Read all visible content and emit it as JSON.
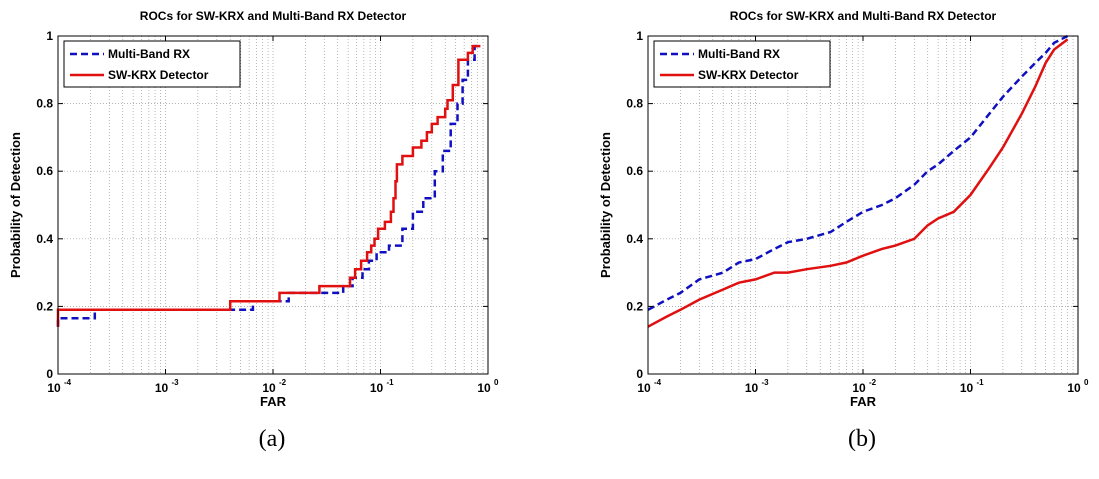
{
  "chart_data": [
    {
      "type": "line",
      "title": "ROCs for SW-KRX and Multi-Band RX Detector",
      "xlabel": "FAR",
      "ylabel": "Probability of Detection",
      "xscale": "log",
      "xlim": [
        0.0001,
        1
      ],
      "ylim": [
        0,
        1
      ],
      "xticks": [
        {
          "base": "10",
          "exp": "-4"
        },
        {
          "base": "10",
          "exp": "-3"
        },
        {
          "base": "10",
          "exp": "-2"
        },
        {
          "base": "10",
          "exp": "-1"
        },
        {
          "base": "10",
          "exp": "0"
        }
      ],
      "yticks": [
        "0",
        "0.2",
        "0.4",
        "0.6",
        "0.8",
        "1"
      ],
      "grid": true,
      "legend": "top-left",
      "caption": "(a)",
      "series": [
        {
          "name": "Multi-Band RX",
          "color": "#1010c0",
          "style": "dashed",
          "points": [
            [
              0.0001,
              0.14
            ],
            [
              0.0001,
              0.165
            ],
            [
              0.00022,
              0.165
            ],
            [
              0.00022,
              0.19
            ],
            [
              0.0065,
              0.19
            ],
            [
              0.0065,
              0.215
            ],
            [
              0.014,
              0.215
            ],
            [
              0.014,
              0.24
            ],
            [
              0.045,
              0.24
            ],
            [
              0.045,
              0.26
            ],
            [
              0.055,
              0.26
            ],
            [
              0.055,
              0.285
            ],
            [
              0.068,
              0.285
            ],
            [
              0.068,
              0.31
            ],
            [
              0.078,
              0.31
            ],
            [
              0.078,
              0.335
            ],
            [
              0.092,
              0.335
            ],
            [
              0.092,
              0.36
            ],
            [
              0.12,
              0.36
            ],
            [
              0.12,
              0.38
            ],
            [
              0.16,
              0.38
            ],
            [
              0.16,
              0.43
            ],
            [
              0.2,
              0.43
            ],
            [
              0.2,
              0.48
            ],
            [
              0.25,
              0.48
            ],
            [
              0.25,
              0.52
            ],
            [
              0.32,
              0.52
            ],
            [
              0.32,
              0.6
            ],
            [
              0.38,
              0.6
            ],
            [
              0.38,
              0.66
            ],
            [
              0.45,
              0.66
            ],
            [
              0.45,
              0.74
            ],
            [
              0.52,
              0.74
            ],
            [
              0.52,
              0.8
            ],
            [
              0.58,
              0.8
            ],
            [
              0.58,
              0.87
            ],
            [
              0.65,
              0.87
            ],
            [
              0.65,
              0.93
            ],
            [
              0.75,
              0.93
            ],
            [
              0.75,
              0.97
            ],
            [
              0.85,
              0.97
            ]
          ]
        },
        {
          "name": "SW-KRX Detector",
          "color": "#e01010",
          "style": "solid",
          "points": [
            [
              0.0001,
              0.14
            ],
            [
              0.0001,
              0.19
            ],
            [
              0.004,
              0.19
            ],
            [
              0.004,
              0.215
            ],
            [
              0.0115,
              0.215
            ],
            [
              0.0115,
              0.24
            ],
            [
              0.027,
              0.24
            ],
            [
              0.027,
              0.26
            ],
            [
              0.052,
              0.26
            ],
            [
              0.052,
              0.285
            ],
            [
              0.058,
              0.285
            ],
            [
              0.058,
              0.31
            ],
            [
              0.066,
              0.31
            ],
            [
              0.066,
              0.335
            ],
            [
              0.075,
              0.335
            ],
            [
              0.075,
              0.36
            ],
            [
              0.082,
              0.36
            ],
            [
              0.082,
              0.38
            ],
            [
              0.088,
              0.38
            ],
            [
              0.088,
              0.4
            ],
            [
              0.095,
              0.4
            ],
            [
              0.095,
              0.43
            ],
            [
              0.11,
              0.43
            ],
            [
              0.11,
              0.45
            ],
            [
              0.125,
              0.45
            ],
            [
              0.125,
              0.48
            ],
            [
              0.132,
              0.48
            ],
            [
              0.132,
              0.52
            ],
            [
              0.138,
              0.52
            ],
            [
              0.138,
              0.57
            ],
            [
              0.142,
              0.57
            ],
            [
              0.142,
              0.62
            ],
            [
              0.16,
              0.62
            ],
            [
              0.16,
              0.645
            ],
            [
              0.2,
              0.645
            ],
            [
              0.2,
              0.67
            ],
            [
              0.24,
              0.67
            ],
            [
              0.24,
              0.69
            ],
            [
              0.27,
              0.69
            ],
            [
              0.27,
              0.715
            ],
            [
              0.3,
              0.715
            ],
            [
              0.3,
              0.74
            ],
            [
              0.34,
              0.74
            ],
            [
              0.34,
              0.76
            ],
            [
              0.4,
              0.76
            ],
            [
              0.4,
              0.785
            ],
            [
              0.42,
              0.785
            ],
            [
              0.42,
              0.81
            ],
            [
              0.47,
              0.81
            ],
            [
              0.47,
              0.855
            ],
            [
              0.53,
              0.855
            ],
            [
              0.53,
              0.93
            ],
            [
              0.65,
              0.93
            ],
            [
              0.65,
              0.95
            ],
            [
              0.72,
              0.95
            ],
            [
              0.72,
              0.97
            ],
            [
              0.85,
              0.97
            ]
          ]
        }
      ]
    },
    {
      "type": "line",
      "title": "ROCs for SW-KRX and Multi-Band RX Detector",
      "xlabel": "FAR",
      "ylabel": "Probability of Detection",
      "xscale": "log",
      "xlim": [
        0.0001,
        1
      ],
      "ylim": [
        0,
        1
      ],
      "xticks": [
        {
          "base": "10",
          "exp": "-4"
        },
        {
          "base": "10",
          "exp": "-3"
        },
        {
          "base": "10",
          "exp": "-2"
        },
        {
          "base": "10",
          "exp": "-1"
        },
        {
          "base": "10",
          "exp": "0"
        }
      ],
      "yticks": [
        "0",
        "0.2",
        "0.4",
        "0.6",
        "0.8",
        "1"
      ],
      "grid": true,
      "legend": "top-left",
      "caption": "(b)",
      "series": [
        {
          "name": "Multi-Band RX",
          "color": "#1010c0",
          "style": "dashed",
          "points": [
            [
              0.0001,
              0.19
            ],
            [
              0.00015,
              0.22
            ],
            [
              0.0002,
              0.24
            ],
            [
              0.0003,
              0.28
            ],
            [
              0.0005,
              0.3
            ],
            [
              0.0007,
              0.33
            ],
            [
              0.001,
              0.34
            ],
            [
              0.0015,
              0.37
            ],
            [
              0.002,
              0.39
            ],
            [
              0.003,
              0.4
            ],
            [
              0.005,
              0.42
            ],
            [
              0.007,
              0.45
            ],
            [
              0.01,
              0.48
            ],
            [
              0.015,
              0.5
            ],
            [
              0.02,
              0.52
            ],
            [
              0.03,
              0.56
            ],
            [
              0.04,
              0.6
            ],
            [
              0.05,
              0.62
            ],
            [
              0.07,
              0.66
            ],
            [
              0.1,
              0.7
            ],
            [
              0.15,
              0.77
            ],
            [
              0.2,
              0.82
            ],
            [
              0.3,
              0.88
            ],
            [
              0.4,
              0.92
            ],
            [
              0.5,
              0.95
            ],
            [
              0.6,
              0.98
            ],
            [
              0.8,
              1.0
            ]
          ]
        },
        {
          "name": "SW-KRX Detector",
          "color": "#e01010",
          "style": "solid",
          "points": [
            [
              0.0001,
              0.14
            ],
            [
              0.00015,
              0.17
            ],
            [
              0.0002,
              0.19
            ],
            [
              0.0003,
              0.22
            ],
            [
              0.0005,
              0.25
            ],
            [
              0.0007,
              0.27
            ],
            [
              0.001,
              0.28
            ],
            [
              0.0015,
              0.3
            ],
            [
              0.002,
              0.3
            ],
            [
              0.003,
              0.31
            ],
            [
              0.005,
              0.32
            ],
            [
              0.007,
              0.33
            ],
            [
              0.01,
              0.35
            ],
            [
              0.015,
              0.37
            ],
            [
              0.02,
              0.38
            ],
            [
              0.03,
              0.4
            ],
            [
              0.04,
              0.44
            ],
            [
              0.05,
              0.46
            ],
            [
              0.07,
              0.48
            ],
            [
              0.1,
              0.53
            ],
            [
              0.15,
              0.61
            ],
            [
              0.2,
              0.67
            ],
            [
              0.3,
              0.77
            ],
            [
              0.4,
              0.85
            ],
            [
              0.5,
              0.92
            ],
            [
              0.6,
              0.96
            ],
            [
              0.8,
              0.99
            ]
          ]
        }
      ]
    }
  ]
}
